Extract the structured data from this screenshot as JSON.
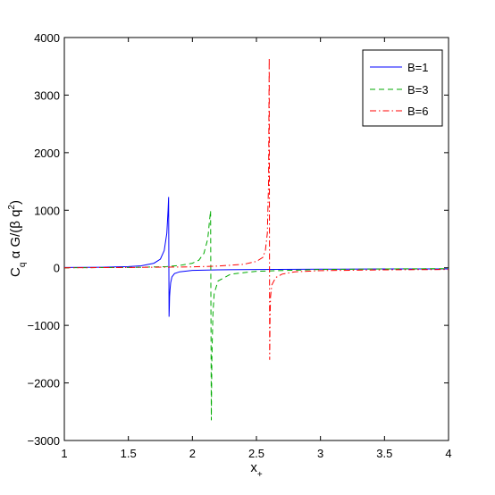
{
  "chart_data": {
    "type": "line",
    "title": "",
    "xlabel": "x",
    "xlabel_sub": "+",
    "ylabel": "C",
    "ylabel_sub": "q",
    "ylabel_rest": " α G/(β q",
    "ylabel_sup": "2",
    "ylabel_close": ")",
    "xlim": [
      1,
      4
    ],
    "ylim": [
      -3000,
      4000
    ],
    "xticks": [
      1,
      1.5,
      2,
      2.5,
      3,
      3.5,
      4
    ],
    "xtick_labels": [
      "1",
      "1.5",
      "2",
      "2.5",
      "3",
      "3.5",
      "4"
    ],
    "yticks": [
      -3000,
      -2000,
      -1000,
      0,
      1000,
      2000,
      3000,
      4000
    ],
    "ytick_labels": [
      "−3000",
      "−2000",
      "−1000",
      "0",
      "1000",
      "2000",
      "3000",
      "4000"
    ],
    "grid": false,
    "legend_position": "top-right",
    "series": [
      {
        "name": "B=1",
        "color": "#0000ff",
        "dash": "solid",
        "x": [
          1.0,
          1.3,
          1.5,
          1.6,
          1.7,
          1.75,
          1.78,
          1.8,
          1.805,
          1.81,
          1.814,
          1.818,
          1.82,
          1.822,
          1.825,
          1.83,
          1.84,
          1.86,
          1.9,
          2.0,
          2.2,
          2.5,
          3.0,
          3.5,
          4.0
        ],
        "y": [
          5,
          10,
          20,
          35,
          80,
          150,
          300,
          600,
          800,
          1000,
          1230,
          -850,
          -700,
          -500,
          -380,
          -260,
          -160,
          -100,
          -70,
          -45,
          -35,
          -30,
          -25,
          -20,
          -20
        ]
      },
      {
        "name": "B=3",
        "color": "#00aa00",
        "dash": "dashed",
        "x": [
          1.0,
          1.5,
          1.8,
          1.9,
          2.0,
          2.05,
          2.09,
          2.12,
          2.135,
          2.142,
          2.148,
          2.152,
          2.16,
          2.17,
          2.2,
          2.3,
          2.5,
          3.0,
          3.5,
          4.0
        ],
        "y": [
          0,
          5,
          20,
          40,
          80,
          130,
          250,
          500,
          850,
          990,
          -2650,
          -1600,
          -800,
          -450,
          -230,
          -110,
          -60,
          -30,
          -20,
          -15
        ]
      },
      {
        "name": "B=6",
        "color": "#ff0000",
        "dash": "dashdot",
        "x": [
          1.0,
          1.5,
          2.0,
          2.2,
          2.4,
          2.5,
          2.55,
          2.57,
          2.585,
          2.595,
          2.6,
          2.603,
          2.606,
          2.61,
          2.62,
          2.65,
          2.7,
          2.8,
          3.0,
          3.5,
          4.0
        ],
        "y": [
          0,
          5,
          15,
          30,
          60,
          110,
          180,
          300,
          600,
          1500,
          3650,
          -1600,
          -900,
          -500,
          -300,
          -170,
          -110,
          -70,
          -50,
          -35,
          -30
        ]
      }
    ]
  }
}
